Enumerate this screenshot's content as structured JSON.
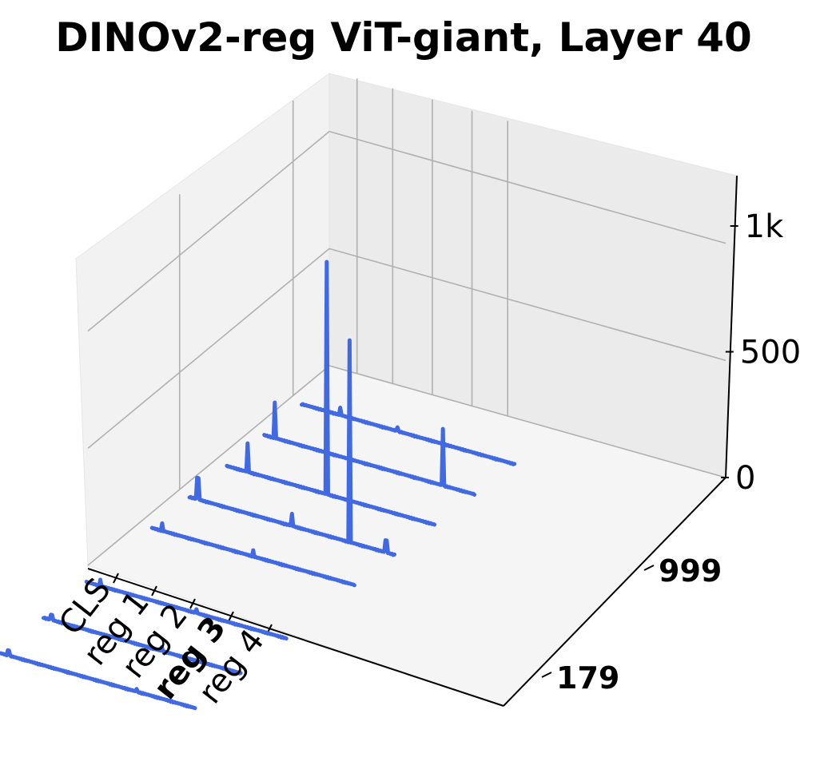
{
  "chart_data": {
    "type": "line",
    "subtype": "3d-line",
    "title": "DINOv2-reg ViT-giant, Layer 40",
    "zlim": [
      0,
      1200
    ],
    "z_ticks": [
      {
        "value": 0,
        "label": "0"
      },
      {
        "value": 500,
        "label": "500"
      },
      {
        "value": 1000,
        "label": "1k"
      }
    ],
    "x_tick_labels": [
      {
        "label": "CLS",
        "bold": false
      },
      {
        "label": "reg 1",
        "bold": false
      },
      {
        "label": "reg 2",
        "bold": false
      },
      {
        "label": "reg 3",
        "bold": true
      },
      {
        "label": "reg 4",
        "bold": false
      }
    ],
    "y_tick_labels": [
      "179",
      "999"
    ],
    "grid": true,
    "line_color": "#4169e1",
    "series": [
      {
        "spikes": [
          {
            "pos": 0.18,
            "value": 40
          },
          {
            "pos": 0.45,
            "value": 25
          }
        ]
      },
      {
        "spikes": [
          {
            "pos": 0.05,
            "value": 160
          },
          {
            "pos": 0.85,
            "value": 250
          }
        ]
      },
      {
        "spikes": [
          {
            "pos": 0.1,
            "value": 130
          },
          {
            "pos": 0.48,
            "value": 1000
          }
        ]
      },
      {
        "spikes": [
          {
            "pos": 0.04,
            "value": 100
          },
          {
            "pos": 0.5,
            "value": 60
          },
          {
            "pos": 0.78,
            "value": 870
          },
          {
            "pos": 0.96,
            "value": 60
          }
        ]
      },
      {
        "spikes": [
          {
            "pos": 0.05,
            "value": 40
          },
          {
            "pos": 0.5,
            "value": 35
          }
        ]
      },
      {
        "spikes": [
          {
            "pos": 0.07,
            "value": 35
          },
          {
            "pos": 0.55,
            "value": 25
          }
        ]
      },
      {
        "spikes": [
          {
            "pos": 0.04,
            "value": 30
          },
          {
            "pos": 0.6,
            "value": 25
          }
        ]
      },
      {
        "spikes": [
          {
            "pos": 0.04,
            "value": 30
          },
          {
            "pos": 0.7,
            "value": 20
          }
        ]
      }
    ]
  }
}
